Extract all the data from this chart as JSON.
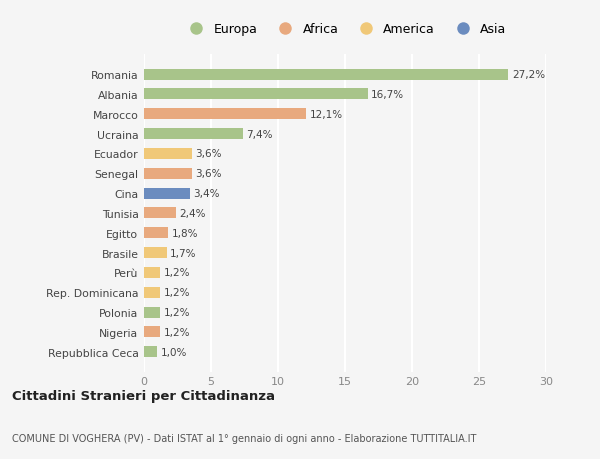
{
  "countries": [
    "Romania",
    "Albania",
    "Marocco",
    "Ucraina",
    "Ecuador",
    "Senegal",
    "Cina",
    "Tunisia",
    "Egitto",
    "Brasile",
    "Perù",
    "Rep. Dominicana",
    "Polonia",
    "Nigeria",
    "Repubblica Ceca"
  ],
  "values": [
    27.2,
    16.7,
    12.1,
    7.4,
    3.6,
    3.6,
    3.4,
    2.4,
    1.8,
    1.7,
    1.2,
    1.2,
    1.2,
    1.2,
    1.0
  ],
  "labels": [
    "27,2%",
    "16,7%",
    "12,1%",
    "7,4%",
    "3,6%",
    "3,6%",
    "3,4%",
    "2,4%",
    "1,8%",
    "1,7%",
    "1,2%",
    "1,2%",
    "1,2%",
    "1,2%",
    "1,0%"
  ],
  "colors": [
    "#a8c48a",
    "#a8c48a",
    "#e8a97e",
    "#a8c48a",
    "#f0c878",
    "#e8a97e",
    "#6b8cbf",
    "#e8a97e",
    "#e8a97e",
    "#f0c878",
    "#f0c878",
    "#f0c878",
    "#a8c48a",
    "#e8a97e",
    "#a8c48a"
  ],
  "legend_labels": [
    "Europa",
    "Africa",
    "America",
    "Asia"
  ],
  "legend_colors": [
    "#a8c48a",
    "#e8a97e",
    "#f0c878",
    "#6b8cbf"
  ],
  "title": "Cittadini Stranieri per Cittadinanza",
  "subtitle": "COMUNE DI VOGHERA (PV) - Dati ISTAT al 1° gennaio di ogni anno - Elaborazione TUTTITALIA.IT",
  "xlim": [
    0,
    30
  ],
  "xticks": [
    0,
    5,
    10,
    15,
    20,
    25,
    30
  ],
  "background_color": "#f5f5f5",
  "grid_color": "#ffffff",
  "bar_height": 0.55
}
